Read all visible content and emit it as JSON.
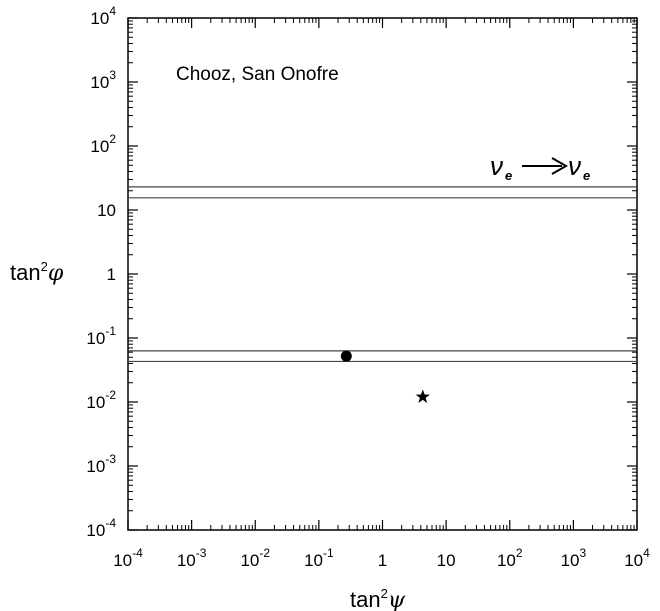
{
  "chart_data": {
    "type": "scatter",
    "xscale": "log",
    "yscale": "log",
    "xlim": [
      0.0001,
      10000
    ],
    "ylim": [
      0.0001,
      10000
    ],
    "xlabel_base": "tan",
    "xlabel_sup": "2",
    "xlabel_sym": "ψ",
    "ylabel_base": "tan",
    "ylabel_sup": "2",
    "ylabel_sym": "φ",
    "grid": false,
    "annotation": "Chooz, San Onofre",
    "process_label": {
      "from": "ν",
      "to": "ν",
      "subscript": "e"
    },
    "x_ticks": [
      {
        "value": 0.0001,
        "base": "10",
        "exp": "-4"
      },
      {
        "value": 0.001,
        "base": "10",
        "exp": "-3"
      },
      {
        "value": 0.01,
        "base": "10",
        "exp": "-2"
      },
      {
        "value": 0.1,
        "base": "10",
        "exp": "-1"
      },
      {
        "value": 1,
        "base": "1",
        "exp": ""
      },
      {
        "value": 10,
        "base": "10",
        "exp": ""
      },
      {
        "value": 100,
        "base": "10",
        "exp": "2"
      },
      {
        "value": 1000,
        "base": "10",
        "exp": "3"
      },
      {
        "value": 10000,
        "base": "10",
        "exp": "4"
      }
    ],
    "y_ticks": [
      {
        "value": 0.0001,
        "base": "10",
        "exp": "-4"
      },
      {
        "value": 0.001,
        "base": "10",
        "exp": "-3"
      },
      {
        "value": 0.01,
        "base": "10",
        "exp": "-2"
      },
      {
        "value": 0.1,
        "base": "10",
        "exp": "-1"
      },
      {
        "value": 1,
        "base": "1",
        "exp": ""
      },
      {
        "value": 10,
        "base": "10",
        "exp": ""
      },
      {
        "value": 100,
        "base": "10",
        "exp": "2"
      },
      {
        "value": 1000,
        "base": "10",
        "exp": "3"
      },
      {
        "value": 10000,
        "base": "10",
        "exp": "4"
      }
    ],
    "horizontal_lines": [
      23,
      15.5,
      0.063,
      0.043
    ],
    "points": [
      {
        "marker": "circle",
        "x": 0.27,
        "y": 0.052
      },
      {
        "marker": "star",
        "x": 4.3,
        "y": 0.012
      }
    ]
  }
}
